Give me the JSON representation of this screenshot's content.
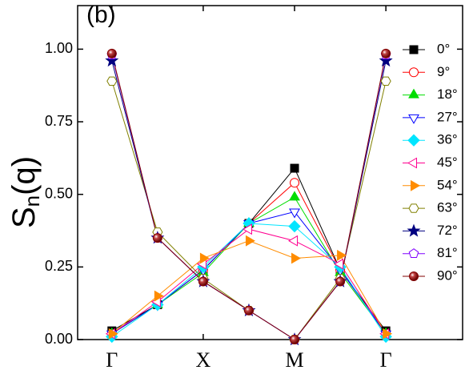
{
  "chart_data": {
    "type": "line",
    "panel_label": "(b)",
    "y_label": {
      "base": "S",
      "subscript": "n",
      "rest": "(q)"
    },
    "x": [
      0,
      1,
      2,
      3,
      4,
      5,
      6
    ],
    "xlim": [
      -0.75,
      7.68
    ],
    "xticks": [
      {
        "value": 0,
        "label": "Γ"
      },
      {
        "value": 2,
        "label": "X"
      },
      {
        "value": 4,
        "label": "M"
      },
      {
        "value": 6,
        "label": "Γ"
      }
    ],
    "ylim": [
      0,
      1.15
    ],
    "yticks": [
      {
        "value": 0,
        "label": "0.00"
      },
      {
        "value": 0.25,
        "label": "0.25"
      },
      {
        "value": 0.5,
        "label": "0.50"
      },
      {
        "value": 0.75,
        "label": "0.75"
      },
      {
        "value": 1,
        "label": "1.00"
      }
    ],
    "grid": false,
    "legend": "right",
    "series": [
      {
        "name": "0°",
        "color": "#000000",
        "marker": "square",
        "filled": true,
        "values": [
          0.03,
          0.12,
          0.24,
          0.4,
          0.59,
          0.24,
          0.03
        ]
      },
      {
        "name": "9°",
        "color": "#ff0000",
        "marker": "circle",
        "filled": false,
        "values": [
          0.02,
          0.12,
          0.24,
          0.4,
          0.54,
          0.24,
          0.02
        ]
      },
      {
        "name": "18°",
        "color": "#00dd00",
        "marker": "triangle-up",
        "filled": true,
        "values": [
          0.02,
          0.12,
          0.23,
          0.4,
          0.49,
          0.23,
          0.02
        ]
      },
      {
        "name": "27°",
        "color": "#0000ff",
        "marker": "triangle-down",
        "filled": false,
        "values": [
          0.02,
          0.12,
          0.24,
          0.4,
          0.44,
          0.24,
          0.02
        ]
      },
      {
        "name": "36°",
        "color": "#00e5ff",
        "marker": "diamond",
        "filled": true,
        "values": [
          0.01,
          0.12,
          0.25,
          0.4,
          0.39,
          0.25,
          0.01
        ]
      },
      {
        "name": "45°",
        "color": "#ff0090",
        "marker": "triangle-left",
        "filled": false,
        "values": [
          0.02,
          0.13,
          0.26,
          0.38,
          0.34,
          0.26,
          0.02
        ]
      },
      {
        "name": "54°",
        "color": "#ff8c00",
        "marker": "triangle-right",
        "filled": true,
        "values": [
          0.02,
          0.15,
          0.28,
          0.34,
          0.28,
          0.29,
          0.02
        ]
      },
      {
        "name": "63°",
        "color": "#808000",
        "marker": "hexagon",
        "filled": false,
        "values": [
          0.89,
          0.37,
          0.21,
          0.1,
          0.0,
          0.21,
          0.89
        ]
      },
      {
        "name": "72°",
        "color": "#000080",
        "marker": "star",
        "filled": true,
        "values": [
          0.96,
          0.35,
          0.2,
          0.1,
          0.0,
          0.2,
          0.96
        ]
      },
      {
        "name": "81°",
        "color": "#8000ff",
        "marker": "pentagon",
        "filled": false,
        "values": [
          0.98,
          0.35,
          0.2,
          0.1,
          0.0,
          0.2,
          0.98
        ]
      },
      {
        "name": "90°",
        "color": "#800000",
        "marker": "sphere",
        "filled": true,
        "values": [
          0.985,
          0.35,
          0.2,
          0.1,
          0.0,
          0.2,
          0.985
        ]
      }
    ]
  }
}
